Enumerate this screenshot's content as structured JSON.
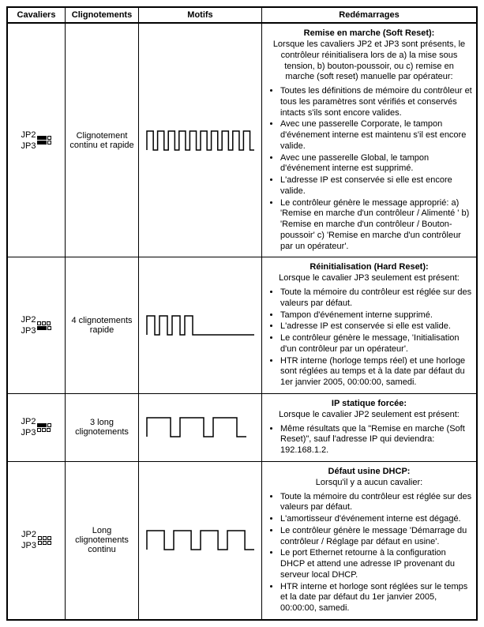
{
  "headers": {
    "cavaliers": "Cavaliers",
    "clignotements": "Clignotements",
    "motifs": "Motifs",
    "redemarrages": "Redémarrages"
  },
  "rows": [
    {
      "jp2": "JP2",
      "jp3": "JP3",
      "jp2_on": true,
      "jp3_on": true,
      "clig": "Clignotement continu et rapide",
      "wave": "fast-continuous",
      "title": "Remise en marche (Soft Reset):",
      "intro": "Lorsque les cavaliers JP2 et JP3 sont présents, le contrôleur réinitialisera lors de a) la mise sous tension, b) bouton-poussoir, ou c) remise en marche (soft reset) manuelle par opérateur:",
      "bullets": [
        "Toutes les définitions de mémoire du contrôleur et tous les paramètres sont vérifiés et conservés intacts s'ils sont encore valides.",
        "Avec une passerelle Corporate, le tampon d'événement interne est maintenu s'il est encore valide.",
        "Avec une passerelle Global, le tampon d'événement interne est supprimé.",
        "L'adresse IP est conservée si elle est encore valide.",
        "Le contrôleur génère le message approprié: a) 'Remise en marche d'un contrôleur / Alimenté ' b) 'Remise en marche d'un contrôleur / Bouton-poussoir' c) 'Remise en marche d'un contrôleur par un opérateur'."
      ]
    },
    {
      "jp2": "JP2",
      "jp3": "JP3",
      "jp2_on": false,
      "jp3_on": true,
      "clig": "4 clignotements rapide",
      "wave": "four-fast",
      "title": "Réinitialisation (Hard Reset):",
      "intro": "Lorsque le cavalier JP3 seulement est présent:",
      "bullets": [
        "Toute la mémoire du contrôleur est réglée sur des valeurs par défaut.",
        "Tampon d'événement interne supprimé.",
        "L'adresse IP est conservée si elle est valide.",
        "Le contrôleur génère le message, 'Initialisation d'un contrôleur par un opérateur'.",
        "HTR interne (horloge temps réel) et une horloge sont réglées au temps et à la date par défaut du 1er janvier 2005, 00:00:00, samedi."
      ]
    },
    {
      "jp2": "JP2",
      "jp3": "JP3",
      "jp2_on": true,
      "jp3_on": false,
      "clig": "3 long clignotements",
      "wave": "three-long",
      "title": "IP statique forcée:",
      "intro": "Lorsque le cavalier JP2 seulement est présent:",
      "bullets": [
        "Même résultats que la \"Remise en marche (Soft Reset)\", sauf l'adresse IP qui deviendra: 192.168.1.2."
      ]
    },
    {
      "jp2": "JP2",
      "jp3": "JP3",
      "jp2_on": false,
      "jp3_on": false,
      "clig": "Long clignotements continu",
      "wave": "long-continuous",
      "title": "Défaut usine DHCP:",
      "intro": "Lorsqu'il y a aucun cavalier:",
      "bullets": [
        "Toute la mémoire du contrôleur est réglée sur des valeurs par défaut.",
        "L'amortisseur d'événement interne est dégagé.",
        "Le contrôleur génère le message 'Démarrage du contrôleur / Réglage par défaut en usine'.",
        "Le port Ethernet retourne à la configuration DHCP et attend une adresse IP provenant du serveur local DHCP.",
        "HTR interne et horloge sont réglées sur le temps et la date par défaut du 1er janvier 2005, 00:00:00, samedi."
      ]
    }
  ],
  "style": {
    "stroke": "#000000",
    "stroke_width": 1.5,
    "wave_svg_width": 140,
    "wave_svg_height": 32
  }
}
